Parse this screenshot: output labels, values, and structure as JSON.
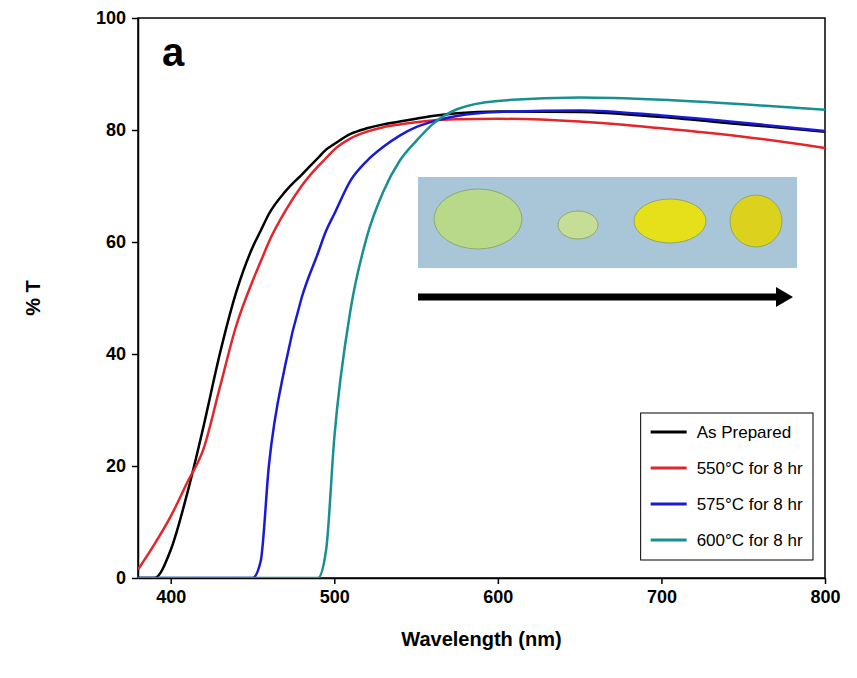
{
  "chart_data": {
    "type": "line",
    "title": "a",
    "x_label": "Wavelength (nm)",
    "y_label": "% T",
    "x": [
      380,
      390,
      400,
      410,
      420,
      430,
      440,
      450,
      455,
      460,
      470,
      480,
      490,
      495,
      500,
      510,
      520,
      530,
      540,
      550,
      560,
      575,
      600,
      650,
      700,
      750,
      800
    ],
    "series": [
      {
        "name": "As Prepared",
        "color": "#000000",
        "values": [
          0,
          0,
          5,
          15,
          27,
          40,
          51,
          59,
          62,
          65,
          69,
          72,
          75,
          76.5,
          77.5,
          79.3,
          80.3,
          81,
          81.5,
          82,
          82.5,
          83,
          83.3,
          83.2,
          82.3,
          81,
          79.7
        ]
      },
      {
        "name": "550°C for 8 hr",
        "color": "#e3262b",
        "values": [
          1.5,
          6,
          11,
          17,
          23,
          34,
          45,
          53,
          56.5,
          60,
          65.5,
          70,
          73.5,
          75,
          76.5,
          78.5,
          79.7,
          80.5,
          81,
          81.4,
          81.7,
          81.9,
          82,
          81.5,
          80.3,
          78.8,
          76.8
        ]
      },
      {
        "name": "575°C for 8 hr",
        "color": "#1a1ad6",
        "values": [
          0,
          0,
          0,
          0,
          0,
          0,
          0,
          0,
          3,
          20,
          38,
          50,
          58,
          62,
          65,
          71,
          74.5,
          77,
          79,
          80.5,
          81.5,
          82.5,
          83.2,
          83.5,
          82.6,
          81.3,
          79.8
        ]
      },
      {
        "name": "600°C for 8 hr",
        "color": "#17908f",
        "values": [
          0,
          0,
          0,
          0,
          0,
          0,
          0,
          0,
          0,
          0,
          0,
          0,
          0,
          5,
          25,
          48,
          61,
          69,
          74.5,
          78,
          81,
          83.7,
          85.2,
          85.8,
          85.4,
          84.6,
          83.6
        ]
      }
    ],
    "xlim": [
      380,
      800
    ],
    "xticks": [
      400,
      500,
      600,
      700,
      800
    ],
    "ylim": [
      0,
      100
    ],
    "yticks": [
      0,
      20,
      40,
      60,
      80,
      100
    ],
    "grid": false,
    "legend": "bottom-right"
  }
}
